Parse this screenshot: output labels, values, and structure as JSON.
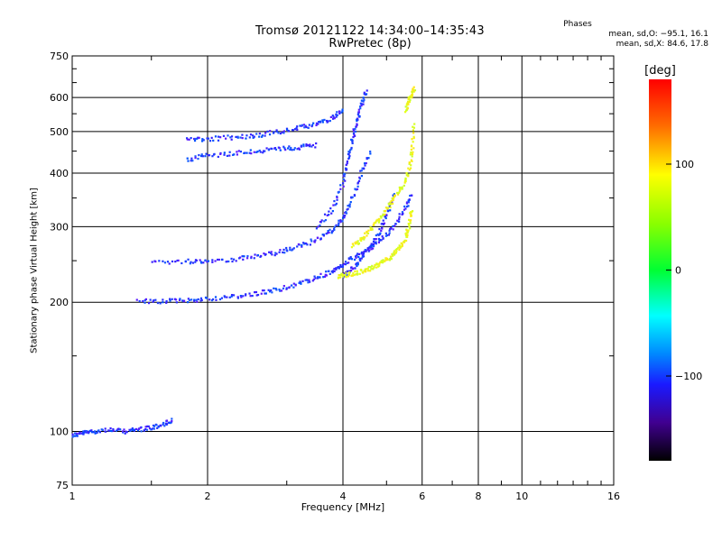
{
  "title_line1": "Tromsø 20121122 14:34:00–14:35:43",
  "title_line2": "RwPretec (8p)",
  "phases": {
    "header": "Phases",
    "o_line": "mean, sd,O: −95.1, 16.1",
    "x_line": "mean, sd,X:  84.6, 17.8"
  },
  "chart_data": {
    "type": "scatter",
    "xlabel": "Frequency [MHz]",
    "ylabel": "Stationary phase Virtual Height [km]",
    "x_scale": "log",
    "y_scale": "log",
    "xlim": [
      1,
      16
    ],
    "ylim": [
      75,
      750
    ],
    "x_ticks": [
      1,
      2,
      4,
      6,
      8,
      10,
      16
    ],
    "x_tick_labels": [
      "1",
      "2",
      "4",
      "6",
      "8",
      "10",
      "16"
    ],
    "y_ticks": [
      75,
      100,
      200,
      300,
      400,
      500,
      600,
      750
    ],
    "y_tick_labels": [
      "75",
      "100",
      "200",
      "300",
      "400",
      "500",
      "600",
      "750"
    ],
    "grid": true,
    "colorbar": {
      "label": "[deg]",
      "range": [
        -180,
        180
      ],
      "tick_values": [
        100,
        0,
        -100
      ],
      "tick_labels": [
        "100",
        "0",
        "−100"
      ]
    },
    "series": [
      {
        "mode": "O",
        "color": "#1f3cff",
        "traces": [
          {
            "x": [
              1.0,
              1.05,
              1.1,
              1.2,
              1.3,
              1.4,
              1.5,
              1.6,
              1.67
            ],
            "y": [
              98,
              99,
              100,
              101,
              100,
              101,
              102,
              104,
              106
            ]
          },
          {
            "x": [
              1.4,
              1.6,
              1.8,
              2.0,
              2.3,
              2.6,
              2.9,
              3.2,
              3.5,
              3.8,
              4.0,
              4.3,
              4.6,
              4.9,
              5.2,
              5.5,
              5.7
            ],
            "y": [
              201,
              201,
              202,
              204,
              206,
              210,
              215,
              221,
              228,
              236,
              245,
              256,
              268,
              282,
              302,
              330,
              360
            ]
          },
          {
            "x": [
              1.5,
              1.8,
              2.0,
              2.3,
              2.6,
              2.9,
              3.2,
              3.5,
              3.8,
              4.0,
              4.2,
              4.4,
              4.6
            ],
            "y": [
              248,
              249,
              250,
              252,
              256,
              262,
              270,
              280,
              295,
              315,
              350,
              400,
              450
            ]
          },
          {
            "x": [
              1.8,
              2.0,
              2.3,
              2.6,
              2.9,
              3.2,
              3.5,
              3.8,
              4.0
            ],
            "y": [
              478,
              480,
              485,
              490,
              500,
              510,
              520,
              540,
              560
            ]
          },
          {
            "x": [
              1.8,
              2.0,
              2.3,
              2.6,
              2.9,
              3.2,
              3.5
            ],
            "y": [
              430,
              440,
              445,
              450,
              455,
              460,
              465
            ]
          },
          {
            "x": [
              3.5,
              3.8,
              4.0,
              4.1,
              4.2,
              4.3,
              4.4,
              4.5
            ],
            "y": [
              300,
              330,
              380,
              430,
              480,
              530,
              580,
              620
            ]
          },
          {
            "x": [
              4.0,
              4.2,
              4.4,
              4.6,
              4.8,
              5.0,
              5.2
            ],
            "y": [
              230,
              240,
              255,
              270,
              290,
              320,
              360
            ]
          }
        ]
      },
      {
        "mode": "X",
        "color": "#e8ff1a",
        "traces": [
          {
            "x": [
              3.9,
              4.1,
              4.3,
              4.5,
              4.7,
              4.9,
              5.1,
              5.3,
              5.5,
              5.6,
              5.7
            ],
            "y": [
              230,
              232,
              235,
              238,
              242,
              248,
              255,
              265,
              280,
              300,
              330
            ]
          },
          {
            "x": [
              4.2,
              4.4,
              4.6,
              4.8,
              5.0,
              5.2,
              5.4,
              5.6,
              5.7,
              5.75
            ],
            "y": [
              270,
              280,
              295,
              310,
              330,
              350,
              370,
              400,
              450,
              520
            ]
          },
          {
            "x": [
              5.5,
              5.6,
              5.7,
              5.75
            ],
            "y": [
              560,
              590,
              610,
              630
            ]
          }
        ]
      }
    ]
  }
}
